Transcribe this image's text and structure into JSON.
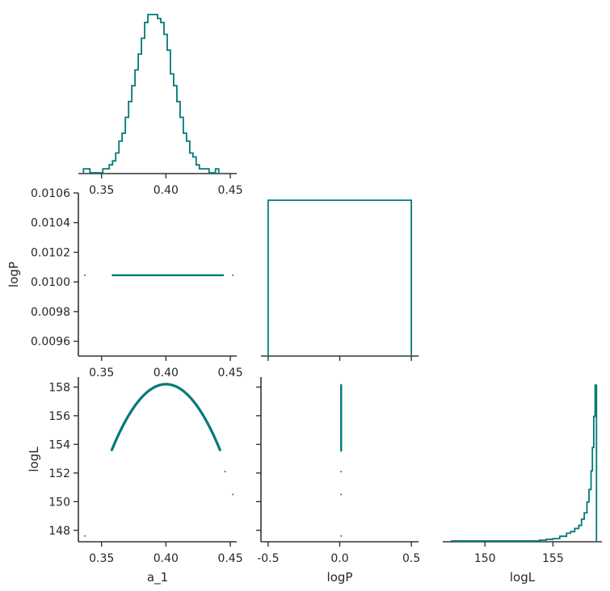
{
  "chart_data": {
    "type": "corner",
    "color": "#007a78",
    "axis_color": "#333333",
    "parameters": [
      "a_1",
      "logP",
      "logL"
    ],
    "panels": [
      {
        "id": "hist-a_1",
        "type": "histogram",
        "xlim": [
          0.332,
          0.455
        ],
        "bin_start": 0.336,
        "bin_width": 0.0025,
        "counts": [
          1,
          1,
          0,
          0,
          0,
          0,
          1,
          1,
          2,
          3,
          5,
          8,
          10,
          14,
          18,
          22,
          26,
          30,
          34,
          38,
          40,
          40,
          40,
          39,
          38,
          35,
          31,
          25,
          22,
          18,
          14,
          10,
          8,
          5,
          4,
          2,
          1,
          1,
          1,
          0,
          0,
          1
        ],
        "xticks": [
          "0.35",
          "0.40",
          "0.45"
        ],
        "yticks": []
      },
      {
        "id": "scatter-a_1-logP",
        "type": "scatter",
        "xlim": [
          0.332,
          0.455
        ],
        "ylim": [
          0.0095,
          0.0106
        ],
        "points": [
          [
            0.337,
            0.010045
          ],
          [
            0.452,
            0.010045
          ]
        ],
        "band": {
          "x_from": 0.358,
          "x_to": 0.445,
          "y": 0.010045
        },
        "xticks": [
          "0.35",
          "0.40",
          "0.45"
        ],
        "yticks": [
          "0.0096",
          "0.0098",
          "0.0100",
          "0.0102",
          "0.0104",
          "0.0106"
        ],
        "ylabel": "logP"
      },
      {
        "id": "hist-logP",
        "type": "histogram",
        "xlim": [
          -0.55,
          0.55
        ],
        "bins": [
          [
            -0.5,
            0.5,
            1
          ]
        ],
        "xticks": [],
        "yticks": []
      },
      {
        "id": "scatter-a_1-logL",
        "type": "scatter",
        "xlim": [
          0.332,
          0.455
        ],
        "ylim": [
          147.2,
          158.7
        ],
        "curve": {
          "x_from": 0.358,
          "x_to": 0.442,
          "peak_x": 0.4,
          "peak_y": 158.2,
          "k": 2600
        },
        "points": [
          [
            0.337,
            147.6
          ],
          [
            0.446,
            152.1
          ],
          [
            0.452,
            150.5
          ]
        ],
        "xticks": [
          "0.35",
          "0.40",
          "0.45"
        ],
        "yticks": [
          "148",
          "150",
          "152",
          "154",
          "156",
          "158"
        ],
        "xlabel": "a_1",
        "ylabel": "logL"
      },
      {
        "id": "scatter-logP-logL",
        "type": "scatter",
        "xlim": [
          -0.55,
          0.55
        ],
        "ylim": [
          147.2,
          158.7
        ],
        "band": {
          "x": 0.01,
          "y_from": 153.5,
          "y_to": 158.2
        },
        "points": [
          [
            0.01,
            152.1
          ],
          [
            0.01,
            150.5
          ],
          [
            0.01,
            147.6
          ]
        ],
        "xticks": [
          "-0.5",
          "0.0",
          "0.5"
        ],
        "yticks": [],
        "xlabel": "logP"
      },
      {
        "id": "hist-logL",
        "type": "histogram",
        "xlim": [
          146.9,
          158.6
        ],
        "step_x": [
          147.5,
          154.0,
          154.5,
          155.0,
          155.5,
          156.0,
          156.3,
          156.6,
          156.9,
          157.1,
          157.3,
          157.5,
          157.65,
          157.8,
          157.9,
          158.0,
          158.1,
          158.2
        ],
        "step_frac": [
          0,
          0.005,
          0.01,
          0.015,
          0.03,
          0.05,
          0.06,
          0.08,
          0.1,
          0.14,
          0.18,
          0.25,
          0.33,
          0.45,
          0.6,
          0.8,
          1.0
        ],
        "xticks": [
          "150",
          "155"
        ],
        "yticks": [],
        "xlabel": "logL"
      }
    ]
  }
}
